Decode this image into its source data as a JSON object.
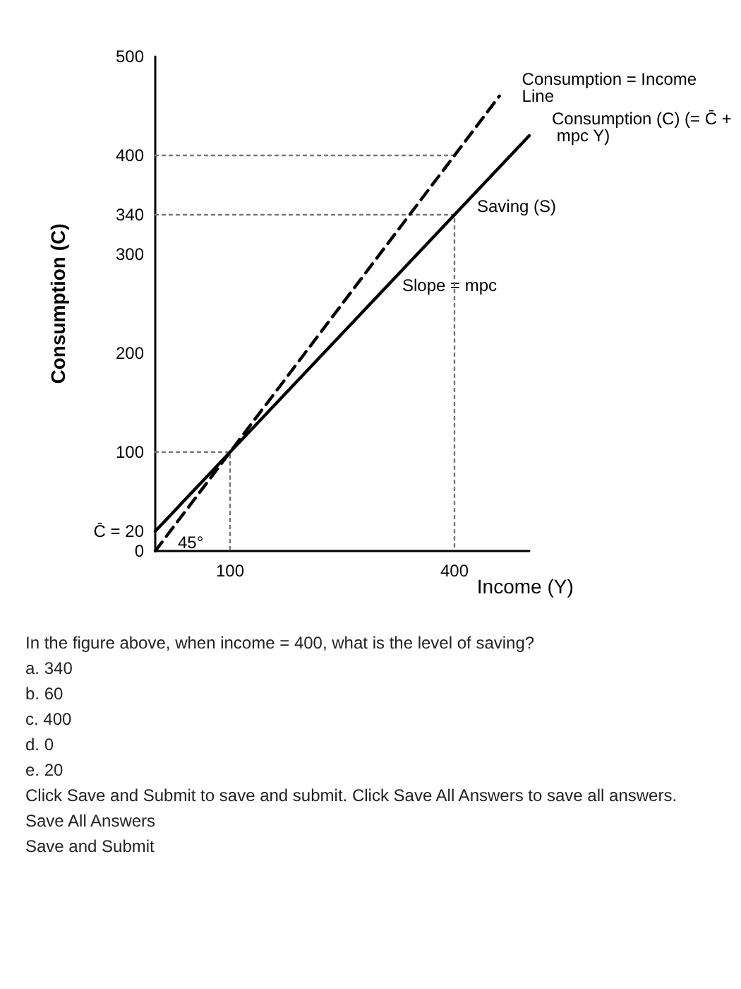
{
  "chart_data": {
    "type": "line",
    "xlabel": "Income (Y)",
    "ylabel": "Consumption (C)",
    "xlim": [
      0,
      500
    ],
    "ylim": [
      0,
      500
    ],
    "xticks": [
      100,
      400
    ],
    "yticks": [
      0,
      {
        "value": 20,
        "label": "C̄ = 20"
      },
      100,
      200,
      300,
      340,
      400,
      500
    ],
    "grid": false,
    "marker": "none",
    "series": [
      {
        "color": "#000000",
        "line_style": "solid",
        "x": [
          0,
          100,
          400,
          500
        ],
        "values": [
          20,
          100,
          340,
          420
        ]
      },
      {
        "color": "#000000",
        "line_style": "dashed",
        "x": [
          0,
          460
        ],
        "values": [
          0,
          460
        ]
      },
      {
        "color": "#777777",
        "line_style": "dotted",
        "x": [
          0,
          100,
          100
        ],
        "values": [
          100,
          100,
          0
        ]
      },
      {
        "color": "#777777",
        "line_style": "dotted",
        "x": [
          0,
          400,
          400
        ],
        "values": [
          340,
          340,
          0
        ]
      },
      {
        "color": "#777777",
        "line_style": "dotted",
        "x": [
          0,
          400
        ],
        "values": [
          400,
          400
        ]
      }
    ],
    "annotations": [
      {
        "text": "Consumption = Income Line",
        "x": 460,
        "y": 460
      },
      {
        "text": "Consumption (C) (= C̄ + mpc Y)",
        "x": 500,
        "y": 420
      },
      {
        "text": "Saving (S)",
        "x": 400,
        "y": 340
      },
      {
        "text": "Slope = mpc",
        "x": 300,
        "y": 260
      },
      {
        "text": "45°",
        "x": 0,
        "y": 0
      },
      "In the figure above, when income = 400, what is the level of saving?",
      "a. 340",
      "b. 60",
      "c. 400",
      "d. 0",
      "e. 20",
      "Click Save and Submit to save and submit. Click Save All Answers to save all answers.",
      "Save All Answers",
      "Save and Submit"
    ]
  }
}
